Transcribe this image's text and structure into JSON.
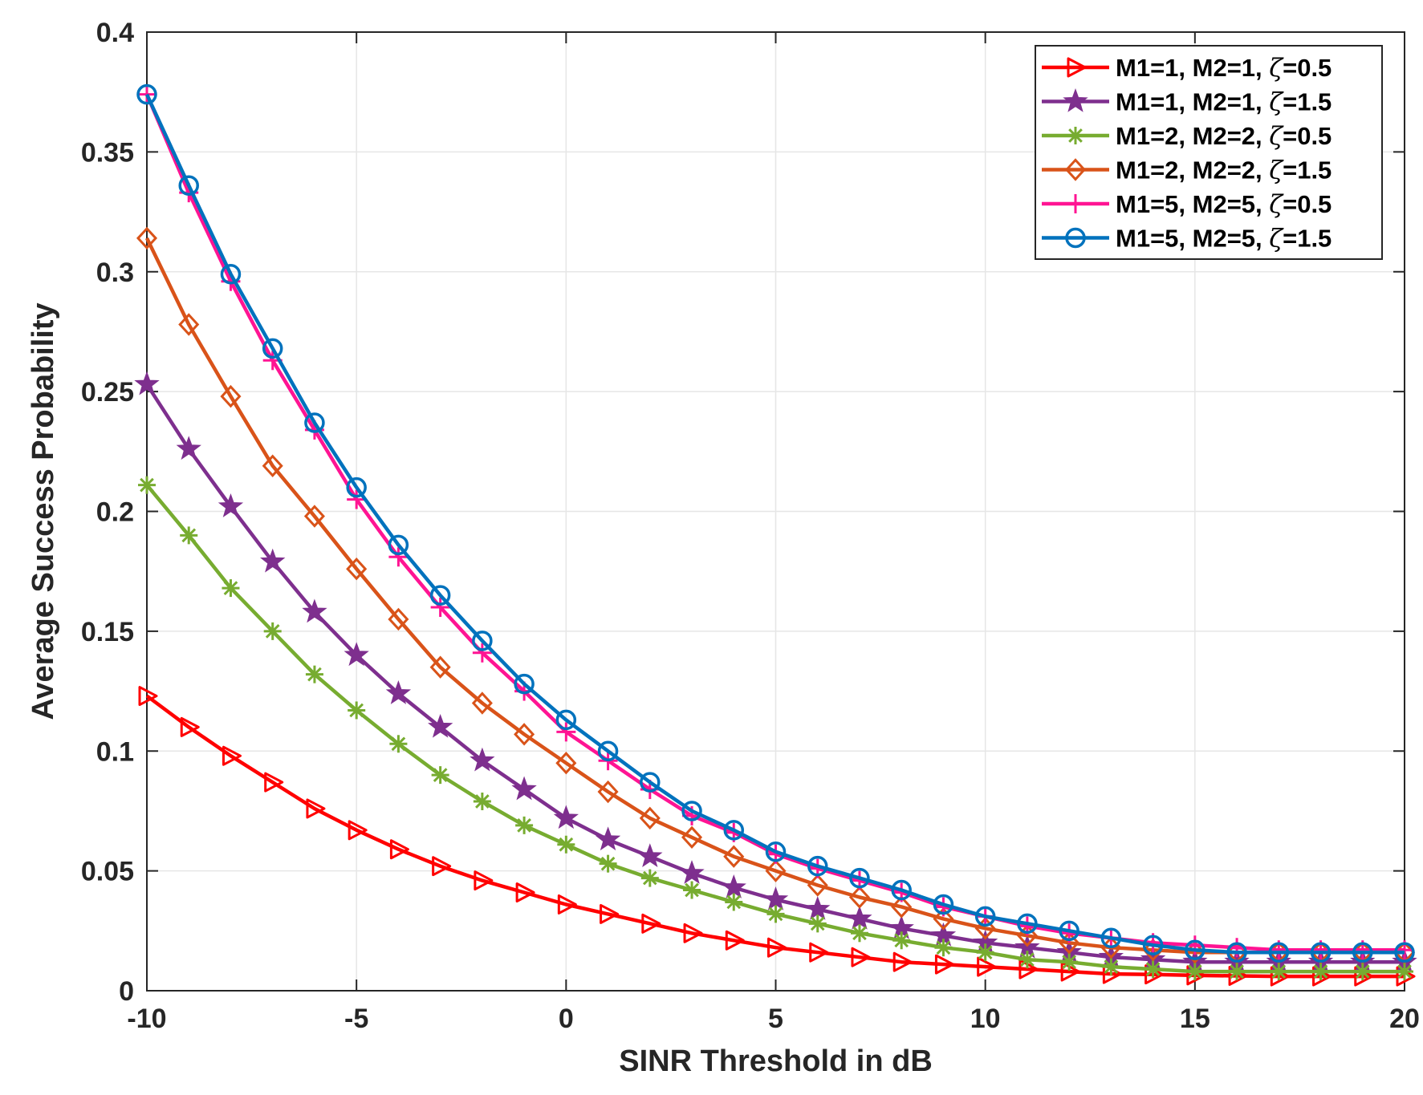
{
  "chart_data": {
    "type": "line",
    "title": "",
    "xlabel": "SINR Threshold in dB",
    "ylabel": "Average Success Probability",
    "xlim": [
      -10,
      20
    ],
    "ylim": [
      0,
      0.4
    ],
    "grid": true,
    "legend_position": "top-right",
    "xticks": [
      -10,
      -5,
      0,
      5,
      10,
      15,
      20
    ],
    "xtick_labels": [
      "-10",
      "-5",
      "0",
      "5",
      "10",
      "15",
      "20"
    ],
    "yticks": [
      0,
      0.05,
      0.1,
      0.15,
      0.2,
      0.25,
      0.3,
      0.35,
      0.4
    ],
    "ytick_labels": [
      "0",
      "0.05",
      "0.1",
      "0.15",
      "0.2",
      "0.25",
      "0.3",
      "0.35",
      "0.4"
    ],
    "x": [
      -10,
      -9,
      -8,
      -7,
      -6,
      -5,
      -4,
      -3,
      -2,
      -1,
      0,
      1,
      2,
      3,
      4,
      5,
      6,
      7,
      8,
      9,
      10,
      11,
      12,
      13,
      14,
      15,
      16,
      17,
      18,
      19,
      20
    ],
    "series": [
      {
        "name": "M1=1, M2=1, ζ=0.5",
        "legend_prefix": "M1=1, M2=1, ",
        "legend_symbol": "ζ",
        "legend_suffix": "=0.5",
        "color": "#ff0000",
        "marker": "triangle-right",
        "values": [
          0.123,
          0.11,
          0.098,
          0.087,
          0.076,
          0.067,
          0.059,
          0.052,
          0.046,
          0.041,
          0.036,
          0.032,
          0.028,
          0.024,
          0.021,
          0.018,
          0.016,
          0.014,
          0.012,
          0.011,
          0.01,
          0.009,
          0.008,
          0.007,
          0.0068,
          0.0064,
          0.0062,
          0.006,
          0.006,
          0.006,
          0.006
        ]
      },
      {
        "name": "M1=1, M2=1, ζ=1.5",
        "legend_prefix": "M1=1, M2=1, ",
        "legend_symbol": "ζ",
        "legend_suffix": "=1.5",
        "color": "#7e2f8e",
        "marker": "pentagram",
        "values": [
          0.253,
          0.226,
          0.202,
          0.179,
          0.158,
          0.14,
          0.124,
          0.11,
          0.096,
          0.084,
          0.072,
          0.063,
          0.056,
          0.049,
          0.043,
          0.038,
          0.034,
          0.03,
          0.026,
          0.023,
          0.02,
          0.018,
          0.016,
          0.014,
          0.013,
          0.012,
          0.012,
          0.012,
          0.012,
          0.012,
          0.012
        ]
      },
      {
        "name": "M1=2, M2=2, ζ=0.5",
        "legend_prefix": "M1=2, M2=2, ",
        "legend_symbol": "ζ",
        "legend_suffix": "=0.5",
        "color": "#77ac30",
        "marker": "asterisk",
        "values": [
          0.211,
          0.19,
          0.168,
          0.15,
          0.132,
          0.117,
          0.103,
          0.09,
          0.079,
          0.069,
          0.061,
          0.053,
          0.047,
          0.042,
          0.037,
          0.032,
          0.028,
          0.024,
          0.021,
          0.018,
          0.016,
          0.013,
          0.012,
          0.01,
          0.009,
          0.008,
          0.008,
          0.008,
          0.008,
          0.008,
          0.008
        ]
      },
      {
        "name": "M1=2, M2=2, ζ=1.5",
        "legend_prefix": "M1=2, M2=2, ",
        "legend_symbol": "ζ",
        "legend_suffix": "=1.5",
        "color": "#d95319",
        "marker": "diamond",
        "values": [
          0.314,
          0.278,
          0.248,
          0.219,
          0.198,
          0.176,
          0.155,
          0.135,
          0.12,
          0.107,
          0.095,
          0.083,
          0.072,
          0.064,
          0.056,
          0.05,
          0.044,
          0.039,
          0.035,
          0.03,
          0.026,
          0.023,
          0.02,
          0.018,
          0.017,
          0.016,
          0.016,
          0.016,
          0.016,
          0.016,
          0.016
        ]
      },
      {
        "name": "M1=5, M2=5, ζ=0.5",
        "legend_prefix": "M1=5, M2=5, ",
        "legend_symbol": "ζ",
        "legend_suffix": "=0.5",
        "color": "#ff1493",
        "marker": "plus",
        "values": [
          0.374,
          0.333,
          0.296,
          0.263,
          0.234,
          0.205,
          0.181,
          0.16,
          0.141,
          0.125,
          0.108,
          0.096,
          0.084,
          0.073,
          0.066,
          0.057,
          0.051,
          0.046,
          0.041,
          0.035,
          0.031,
          0.027,
          0.024,
          0.022,
          0.02,
          0.019,
          0.018,
          0.017,
          0.017,
          0.017,
          0.017
        ]
      },
      {
        "name": "M1=5, M2=5, ζ=1.5",
        "legend_prefix": "M1=5, M2=5, ",
        "legend_symbol": "ζ",
        "legend_suffix": "=1.5",
        "color": "#0072bd",
        "marker": "circle",
        "values": [
          0.374,
          0.336,
          0.299,
          0.268,
          0.237,
          0.21,
          0.186,
          0.165,
          0.146,
          0.128,
          0.113,
          0.1,
          0.087,
          0.075,
          0.067,
          0.058,
          0.052,
          0.047,
          0.042,
          0.036,
          0.031,
          0.028,
          0.025,
          0.022,
          0.019,
          0.017,
          0.016,
          0.016,
          0.016,
          0.016,
          0.016
        ]
      }
    ]
  }
}
